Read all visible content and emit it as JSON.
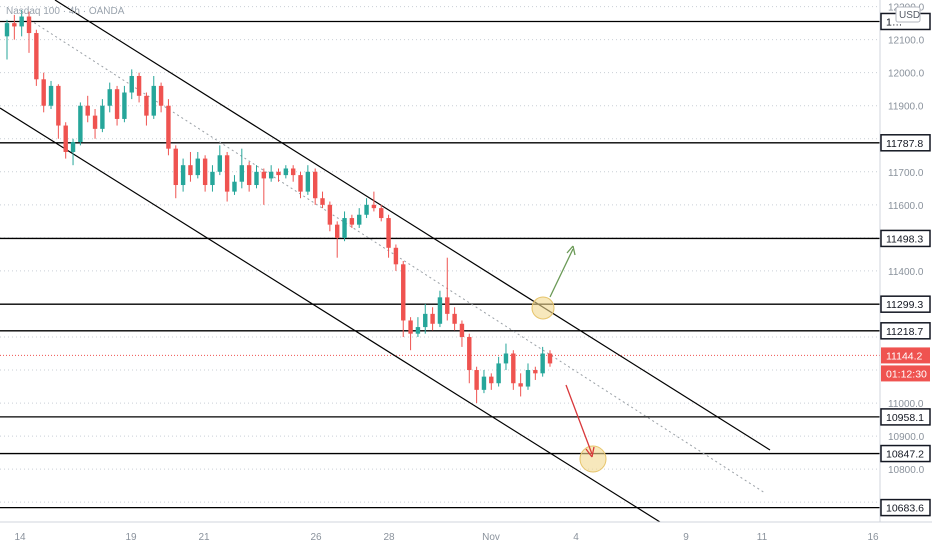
{
  "chart_data": {
    "type": "candlestick",
    "title": "Nasdaq 100 · 4h · OANDA",
    "currency": "USD",
    "ylim": [
      10640,
      12220
    ],
    "price_ticks": [
      12200.0,
      12100.0,
      12000.0,
      11900.0,
      11700.0,
      11600.0,
      11400.0,
      11300.0,
      11000.0,
      10900.0,
      10800.0
    ],
    "x_ticks": [
      "14",
      "19",
      "21",
      "26",
      "28",
      "Nov",
      "4",
      "9",
      "11",
      "16"
    ],
    "horizontal_levels": [
      12155.0,
      11787.8,
      11498.3,
      11299.3,
      11218.7,
      10958.1,
      10847.2,
      10683.6
    ],
    "level_labels": [
      "1…",
      "11787.8",
      "11498.3",
      "11299.3",
      "11218.7",
      "10958.1",
      "10847.2",
      "10683.6"
    ],
    "current_price": 11144.2,
    "countdown": "01:12:30",
    "colors": {
      "up": "#26a69a",
      "down": "#ef5350",
      "line": "#000000",
      "grid": "#c9cfd6",
      "label": "#131722",
      "current": "#ef5350",
      "up_arrow": "#6b9a57",
      "down_arrow": "#d9383b",
      "highlight": "#f2d88f"
    },
    "annotations": [
      "highlight-circle upper",
      "highlight-circle lower",
      "up arrow",
      "down arrow"
    ],
    "channel": "descending"
  }
}
